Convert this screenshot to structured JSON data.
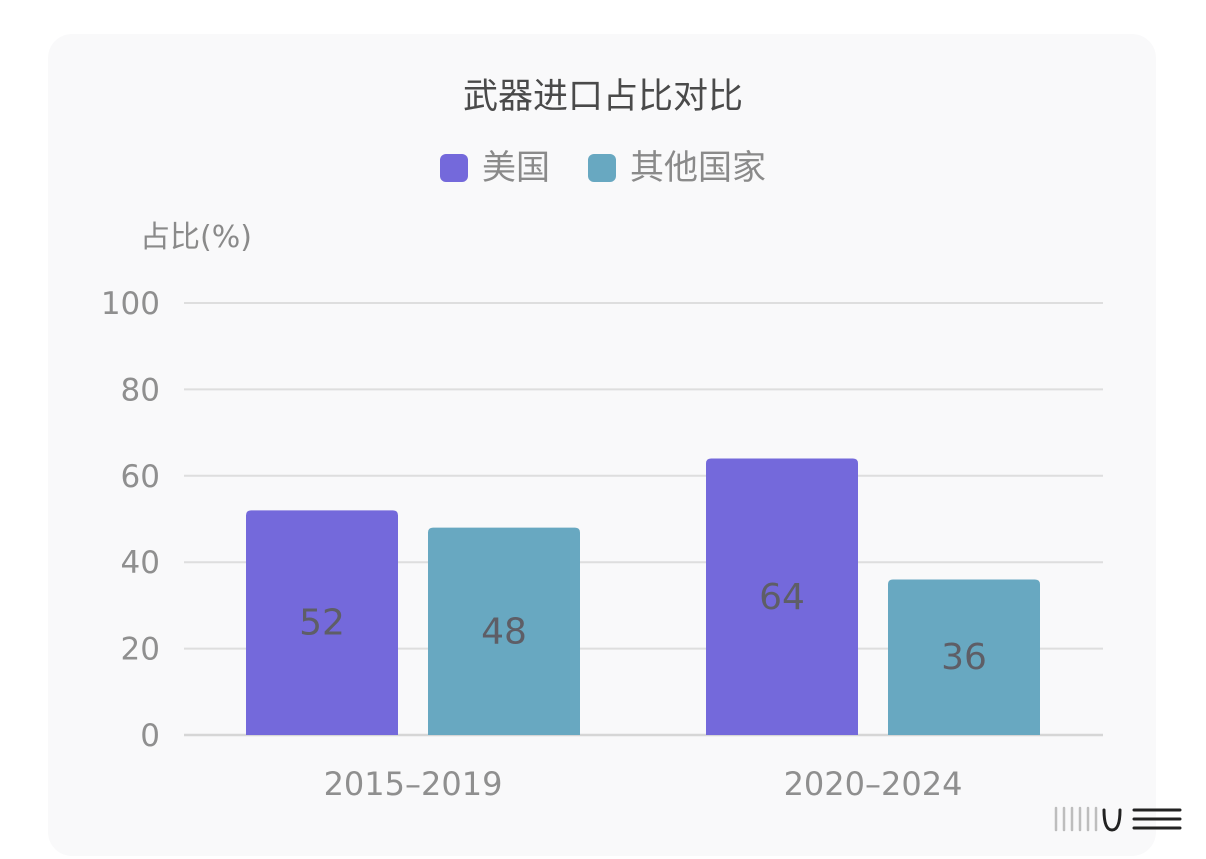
{
  "chart_data": {
    "type": "bar",
    "title": "武器进口占比对比",
    "ylabel": "占比(%)",
    "xlabel": "",
    "categories": [
      "2015–2019",
      "2020–2024"
    ],
    "series": [
      {
        "name": "美国",
        "values": [
          52,
          64
        ],
        "color": "#7469db"
      },
      {
        "name": "其他国家",
        "values": [
          48,
          36
        ],
        "color": "#68a8c1"
      }
    ],
    "ylim": [
      0,
      100
    ],
    "yticks": [
      0,
      20,
      40,
      60,
      80,
      100
    ],
    "grid": true,
    "legend_position": "top-center",
    "data_labels": true
  }
}
